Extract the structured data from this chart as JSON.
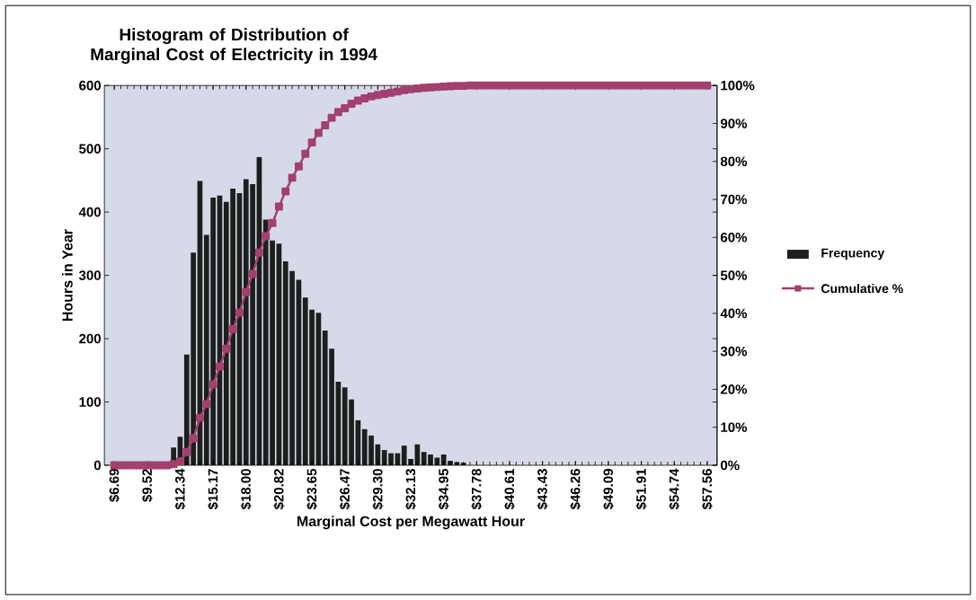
{
  "chart_data": {
    "type": "bar",
    "title": "Histogram of Distribution of Marginal Cost of Electricity in 1994",
    "xlabel": "Marginal Cost per Megawatt Hour",
    "ylabel": "Hours in Year",
    "categories": [
      "$6.69",
      null,
      null,
      null,
      null,
      "$9.52",
      null,
      null,
      null,
      null,
      "$12.34",
      null,
      null,
      null,
      null,
      "$15.17",
      null,
      null,
      null,
      null,
      "$18.00",
      null,
      null,
      null,
      null,
      "$20.82",
      null,
      null,
      null,
      null,
      "$23.65",
      null,
      null,
      null,
      null,
      "$26.47",
      null,
      null,
      null,
      null,
      "$29.30",
      null,
      null,
      null,
      null,
      "$32.13",
      null,
      null,
      null,
      null,
      "$34.95",
      null,
      null,
      null,
      null,
      "$37.78",
      null,
      null,
      null,
      null,
      "$40.61",
      null,
      null,
      null,
      null,
      "$43.43",
      null,
      null,
      null,
      null,
      "$46.26",
      null,
      null,
      null,
      null,
      "$49.09",
      null,
      null,
      null,
      null,
      "$51.91",
      null,
      null,
      null,
      null,
      "$54.74",
      null,
      null,
      null,
      null,
      "$57.56"
    ],
    "series": [
      {
        "name": "Frequency",
        "type": "bar",
        "color": "#1c1f1c",
        "values": [
          0,
          0,
          0,
          0,
          0,
          0,
          0,
          0,
          0,
          28,
          45,
          175,
          336,
          449,
          364,
          423,
          426,
          416,
          437,
          430,
          452,
          444,
          487,
          388,
          355,
          350,
          322,
          307,
          293,
          265,
          246,
          241,
          213,
          184,
          132,
          123,
          104,
          71,
          57,
          47,
          33,
          24,
          19,
          19,
          31,
          10,
          33,
          21,
          17,
          12,
          17,
          7,
          5,
          4,
          null,
          null,
          null,
          null,
          0,
          0,
          0,
          0,
          0,
          0,
          0,
          0,
          0,
          0,
          0,
          0,
          0,
          0,
          0,
          0,
          0,
          0,
          0,
          0,
          0,
          0,
          0,
          0,
          0,
          0,
          0,
          0,
          0,
          0,
          0,
          0,
          0
        ]
      },
      {
        "name": "Cumulative %",
        "type": "line",
        "axis": "y2",
        "color": "#a3406e",
        "marker": "square",
        "values": [
          0,
          0,
          0,
          0,
          0,
          0,
          0,
          0,
          0,
          0.3,
          1,
          3.5,
          7.1,
          12.5,
          16.1,
          21.3,
          26,
          30.7,
          35.9,
          40.2,
          45.6,
          50.4,
          56,
          60.3,
          63.8,
          68.1,
          72.1,
          75.7,
          78.7,
          82,
          85,
          87.5,
          89.5,
          91.5,
          93,
          94,
          95.2,
          96,
          96.6,
          97.1,
          97.5,
          97.8,
          98.1,
          98.4,
          98.8,
          99,
          99.2,
          99.4,
          99.5,
          99.6,
          99.7,
          99.8,
          99.9,
          99.9,
          100,
          100,
          100,
          100,
          100,
          100,
          100,
          100,
          100,
          100,
          100,
          100,
          100,
          100,
          100,
          100,
          100,
          100,
          100,
          100,
          100,
          100,
          100,
          100,
          100,
          100,
          100,
          100,
          100,
          100,
          100,
          100,
          100,
          100,
          100,
          100,
          100
        ]
      }
    ],
    "ylim": [
      0,
      600
    ],
    "yticks": [
      0,
      100,
      200,
      300,
      400,
      500,
      600
    ],
    "y2lim": [
      0,
      100
    ],
    "y2ticks": [
      {
        "value": 0,
        "label": "0%"
      },
      {
        "value": 10,
        "label": "10%"
      },
      {
        "value": 20,
        "label": "20%"
      },
      {
        "value": 30,
        "label": "30%"
      },
      {
        "value": 40,
        "label": "40%"
      },
      {
        "value": 50,
        "label": "50%"
      },
      {
        "value": 60,
        "label": "60%"
      },
      {
        "value": 70,
        "label": "70%"
      },
      {
        "value": 80,
        "label": "80%"
      },
      {
        "value": 90,
        "label": "90%"
      },
      {
        "value": 100,
        "label": "100%"
      }
    ],
    "legend": "right",
    "grid": false
  }
}
